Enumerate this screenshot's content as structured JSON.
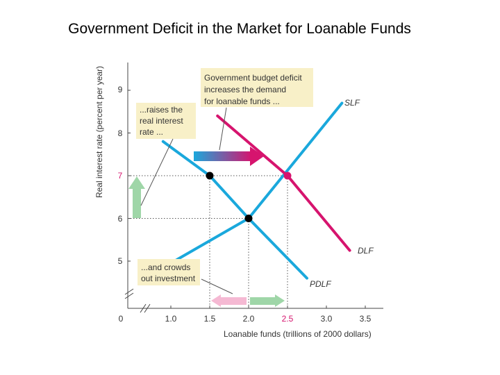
{
  "title": "Government Deficit in the Market for Loanable Funds",
  "colors": {
    "slf": "#1aa8dc",
    "pdlf": "#1aa8dc",
    "dlf": "#d6146e",
    "annotation_bg": "#f8f0c8",
    "highlight": "#d6146e",
    "green_arrow": "#9fd6a8",
    "pink_arrow": "#f5b9d3"
  },
  "chart_data": {
    "type": "line",
    "xlabel": "Loanable funds (trillions of 2000 dollars)",
    "ylabel": "Real interest rate (percent per year)",
    "x_ticks": [
      "0",
      "1.0",
      "1.5",
      "2.0",
      "2.5",
      "3.0",
      "3.5"
    ],
    "y_ticks": [
      "5",
      "6",
      "7",
      "8",
      "9"
    ],
    "highlight_x": "2.5",
    "highlight_y": "7",
    "series": [
      {
        "name": "SLF",
        "points": [
          [
            0.95,
            4.9
          ],
          [
            2.0,
            6.0
          ],
          [
            3.2,
            8.7
          ]
        ]
      },
      {
        "name": "PDLF",
        "points": [
          [
            0.9,
            7.8
          ],
          [
            1.5,
            7.0
          ],
          [
            2.0,
            6.0
          ],
          [
            2.75,
            4.6
          ]
        ]
      },
      {
        "name": "DLF",
        "points": [
          [
            1.6,
            8.4
          ],
          [
            2.5,
            7.0
          ],
          [
            3.3,
            5.25
          ]
        ]
      }
    ],
    "points": [
      {
        "x": 1.5,
        "y": 7,
        "color": "#000000"
      },
      {
        "x": 2.0,
        "y": 6,
        "color": "#000000"
      },
      {
        "x": 2.5,
        "y": 7,
        "color": "#d6146e"
      }
    ],
    "annotations": [
      {
        "lines": [
          "Government budget deficit",
          "increases the demand",
          "for loanable funds ..."
        ]
      },
      {
        "lines": [
          "...raises the",
          "real interest",
          "rate ..."
        ]
      },
      {
        "lines": [
          "...and crowds",
          "out investment"
        ]
      }
    ]
  }
}
